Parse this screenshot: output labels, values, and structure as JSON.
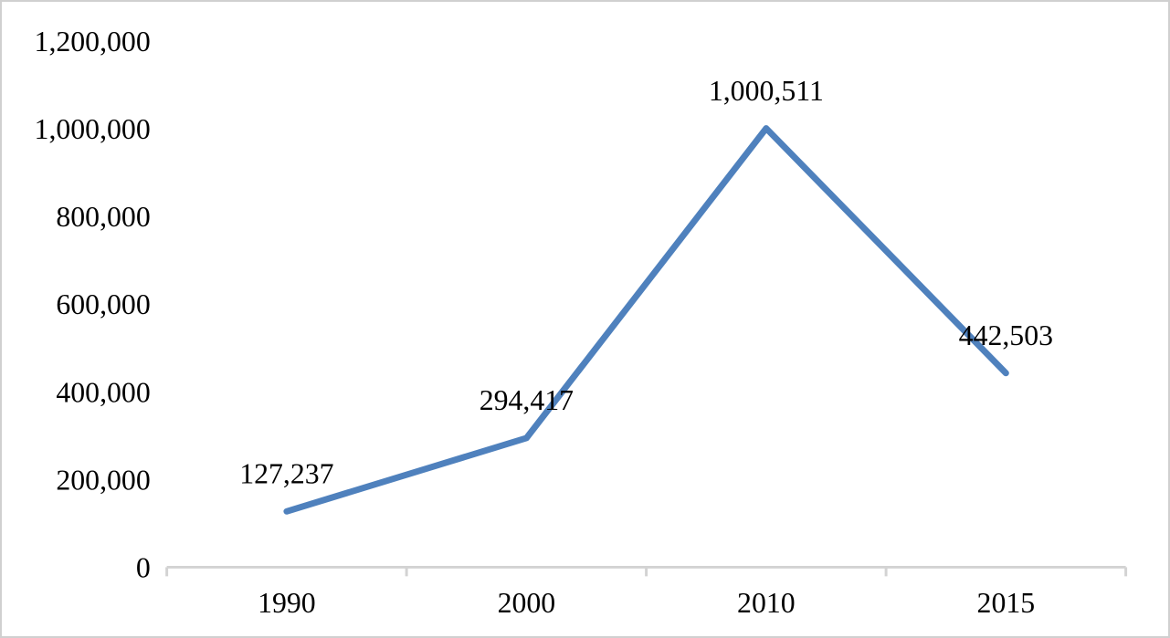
{
  "window": {
    "background_color": "#FFFFFF",
    "frame_border_color": "#D0D0D0"
  },
  "chart_data": {
    "type": "line",
    "title": "",
    "xlabel": "",
    "ylabel": "",
    "categories": [
      "1990",
      "2000",
      "2010",
      "2015"
    ],
    "series": [
      {
        "name": "",
        "values": [
          127237,
          294417,
          1000511,
          442503
        ],
        "point_labels": [
          "127,237",
          "294,417",
          "1,000,511",
          "442,503"
        ]
      }
    ],
    "y_ticks": [
      0,
      200000,
      400000,
      600000,
      800000,
      1000000,
      1200000
    ],
    "y_tick_labels": [
      "0",
      "200,000",
      "400,000",
      "600,000",
      "800,000",
      "1,000,000",
      "1,200,000"
    ],
    "ylim": [
      0,
      1200000
    ],
    "grid": false,
    "legend": false,
    "point_label_position": "above",
    "colors": {
      "line": "#4F81BD",
      "axis": "#D3D3D3",
      "text": "#000000"
    }
  }
}
